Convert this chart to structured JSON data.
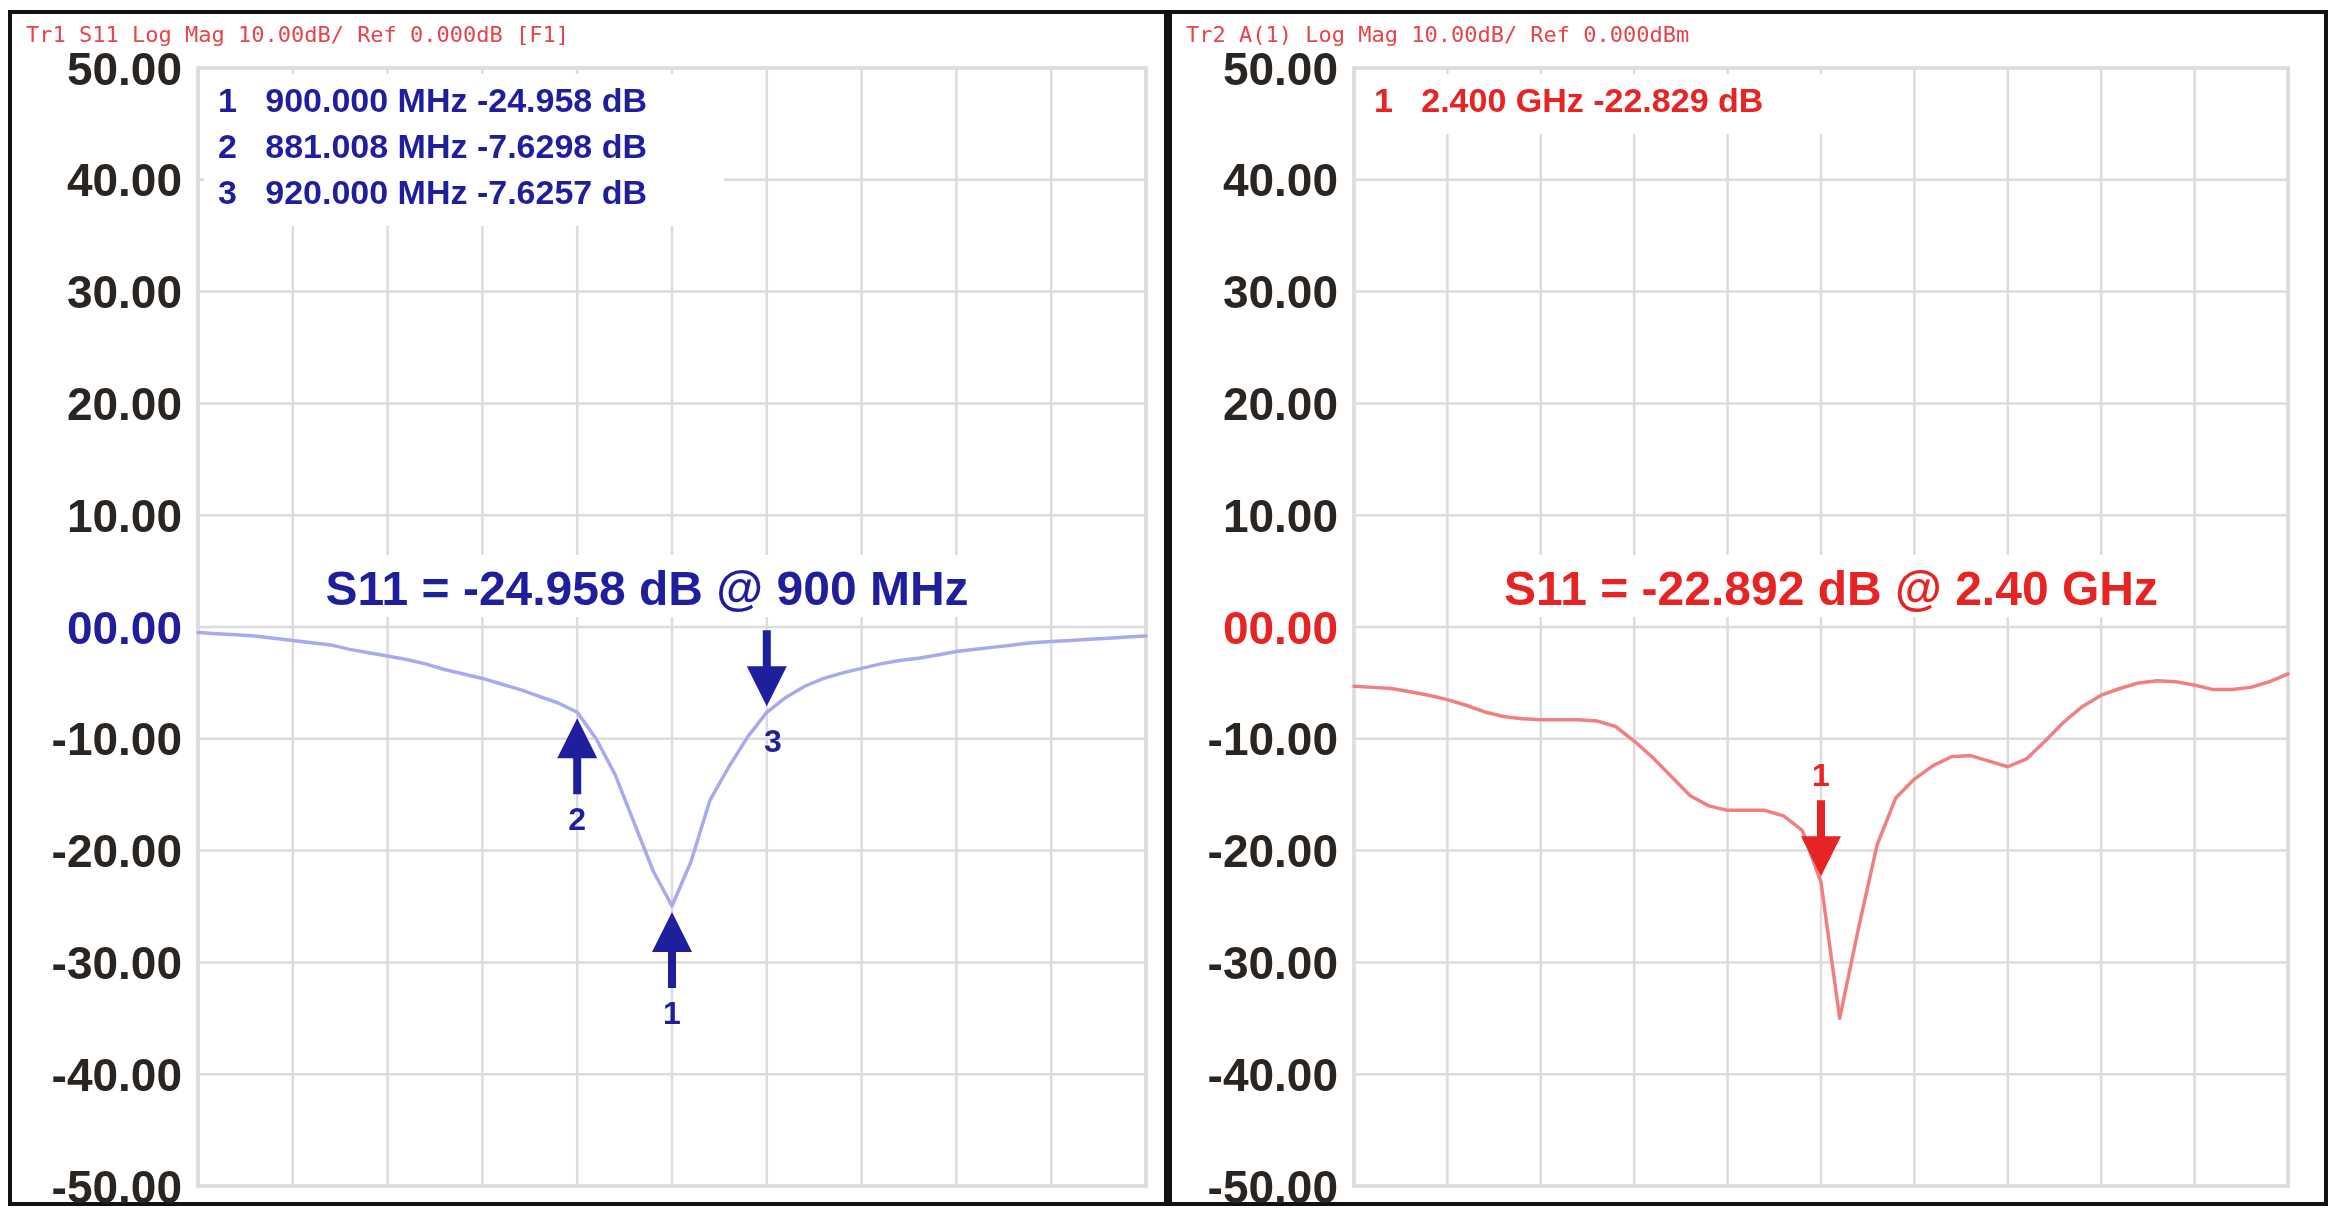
{
  "chart_data": [
    {
      "type": "line",
      "title": "S11 = -24.958 dB @ 900 MHz",
      "subtitle": "Tr1 S11 Log Mag 10.00dB/ Ref 0.000dB [F1]",
      "annotations": [
        "1   900.000 MHz -24.958 dB",
        "2   881.008 MHz -7.6298 dB",
        "3   920.000 MHz -7.6257 dB",
        {
          "text": "1",
          "y": -24.958
        },
        {
          "text": "2",
          "y": -7.6298
        },
        {
          "text": "3",
          "y": -7.6257
        }
      ],
      "categories": [
        null,
        null,
        null,
        null,
        null,
        null,
        null,
        null,
        null,
        null,
        null,
        null,
        null,
        null,
        null,
        null,
        null,
        null,
        null,
        null,
        null,
        null,
        null,
        null,
        null,
        null,
        null,
        null,
        null,
        null,
        null,
        null,
        null,
        null,
        null,
        null,
        null,
        null,
        null,
        null,
        null,
        null,
        null,
        null,
        null,
        null,
        null,
        null,
        null,
        null,
        null
      ],
      "series": [
        {
          "color": "#a9a9ee",
          "values": [
            -0.5,
            -0.6,
            -0.7,
            -0.8,
            -1.0,
            -1.2,
            -1.4,
            -1.6,
            -2.0,
            -2.3,
            -2.6,
            -2.9,
            -3.3,
            -3.8,
            -4.2,
            -4.6,
            -5.1,
            -5.6,
            -6.2,
            -6.8,
            -7.6298,
            -10,
            -13.2,
            -17.5,
            -21.8,
            -24.958,
            -21,
            -15.5,
            -12.5,
            -9.8,
            -7.6257,
            -6.3,
            -5.3,
            -4.6,
            -4.1,
            -3.7,
            -3.3,
            -3.0,
            -2.8,
            -2.5,
            -2.2,
            -2.0,
            -1.8,
            -1.6,
            -1.4,
            -1.3,
            -1.2,
            -1.1,
            -1.0,
            -0.9,
            -0.8
          ]
        }
      ],
      "ylim": [
        -50,
        50
      ],
      "yticks": [
        {
          "value": 50,
          "label": "50.00"
        },
        {
          "value": 40,
          "label": "40.00"
        },
        {
          "value": 30,
          "label": "30.00"
        },
        {
          "value": 20,
          "label": "20.00"
        },
        {
          "value": 10,
          "label": "10.00"
        },
        {
          "value": 0,
          "label": "00.00"
        },
        {
          "value": -10,
          "label": "-10.00"
        },
        {
          "value": -20,
          "label": "-20.00"
        },
        {
          "value": -30,
          "label": "-30.00"
        },
        {
          "value": -40,
          "label": "-40.00"
        },
        {
          "value": -50,
          "label": "-50.00"
        }
      ],
      "tick_labels": "y",
      "grid": true
    },
    {
      "type": "line",
      "title": "S11 = -22.892 dB @ 2.40 GHz",
      "subtitle": "Tr2 A(1) Log Mag 10.00dB/ Ref 0.000dBm",
      "annotations": [
        "1   2.400 GHz -22.829 dB",
        {
          "text": "1",
          "y": -22.829
        }
      ],
      "categories": [
        null,
        null,
        null,
        null,
        null,
        null,
        null,
        null,
        null,
        null,
        null,
        null,
        null,
        null,
        null,
        null,
        null,
        null,
        null,
        null,
        null,
        null,
        null,
        null,
        null,
        null,
        null,
        null,
        null,
        null,
        null,
        null,
        null,
        null,
        null,
        null,
        null,
        null,
        null,
        null,
        null,
        null,
        null,
        null,
        null,
        null,
        null,
        null,
        null,
        null,
        null
      ],
      "series": [
        {
          "color": "#f08080",
          "values": [
            -5.3,
            -5.4,
            -5.5,
            -5.8,
            -6.1,
            -6.5,
            -7.0,
            -7.6,
            -8.0,
            -8.2,
            -8.3,
            -8.3,
            -8.3,
            -8.4,
            -8.9,
            -10.2,
            -11.7,
            -13.4,
            -15.1,
            -16.0,
            -16.4,
            -16.4,
            -16.4,
            -16.9,
            -18.2,
            -22.829,
            -35,
            -27,
            -19.5,
            -15.3,
            -13.6,
            -12.4,
            -11.6,
            -11.5,
            -12.0,
            -12.5,
            -11.8,
            -10.2,
            -8.5,
            -7.1,
            -6.1,
            -5.5,
            -5.0,
            -4.8,
            -4.9,
            -5.2,
            -5.6,
            -5.6,
            -5.4,
            -4.9,
            -4.2
          ]
        }
      ],
      "ylim": [
        -50,
        50
      ],
      "yticks": [
        {
          "value": 50,
          "label": "50.00"
        },
        {
          "value": 40,
          "label": "40.00"
        },
        {
          "value": 30,
          "label": "30.00"
        },
        {
          "value": 20,
          "label": "20.00"
        },
        {
          "value": 10,
          "label": "10.00"
        },
        {
          "value": 0,
          "label": "00.00"
        },
        {
          "value": -10,
          "label": "-10.00"
        },
        {
          "value": -20,
          "label": "-20.00"
        },
        {
          "value": -30,
          "label": "-30.00"
        },
        {
          "value": -40,
          "label": "-40.00"
        },
        {
          "value": -50,
          "label": "-50.00"
        }
      ],
      "tick_labels": "y",
      "grid": true
    }
  ]
}
